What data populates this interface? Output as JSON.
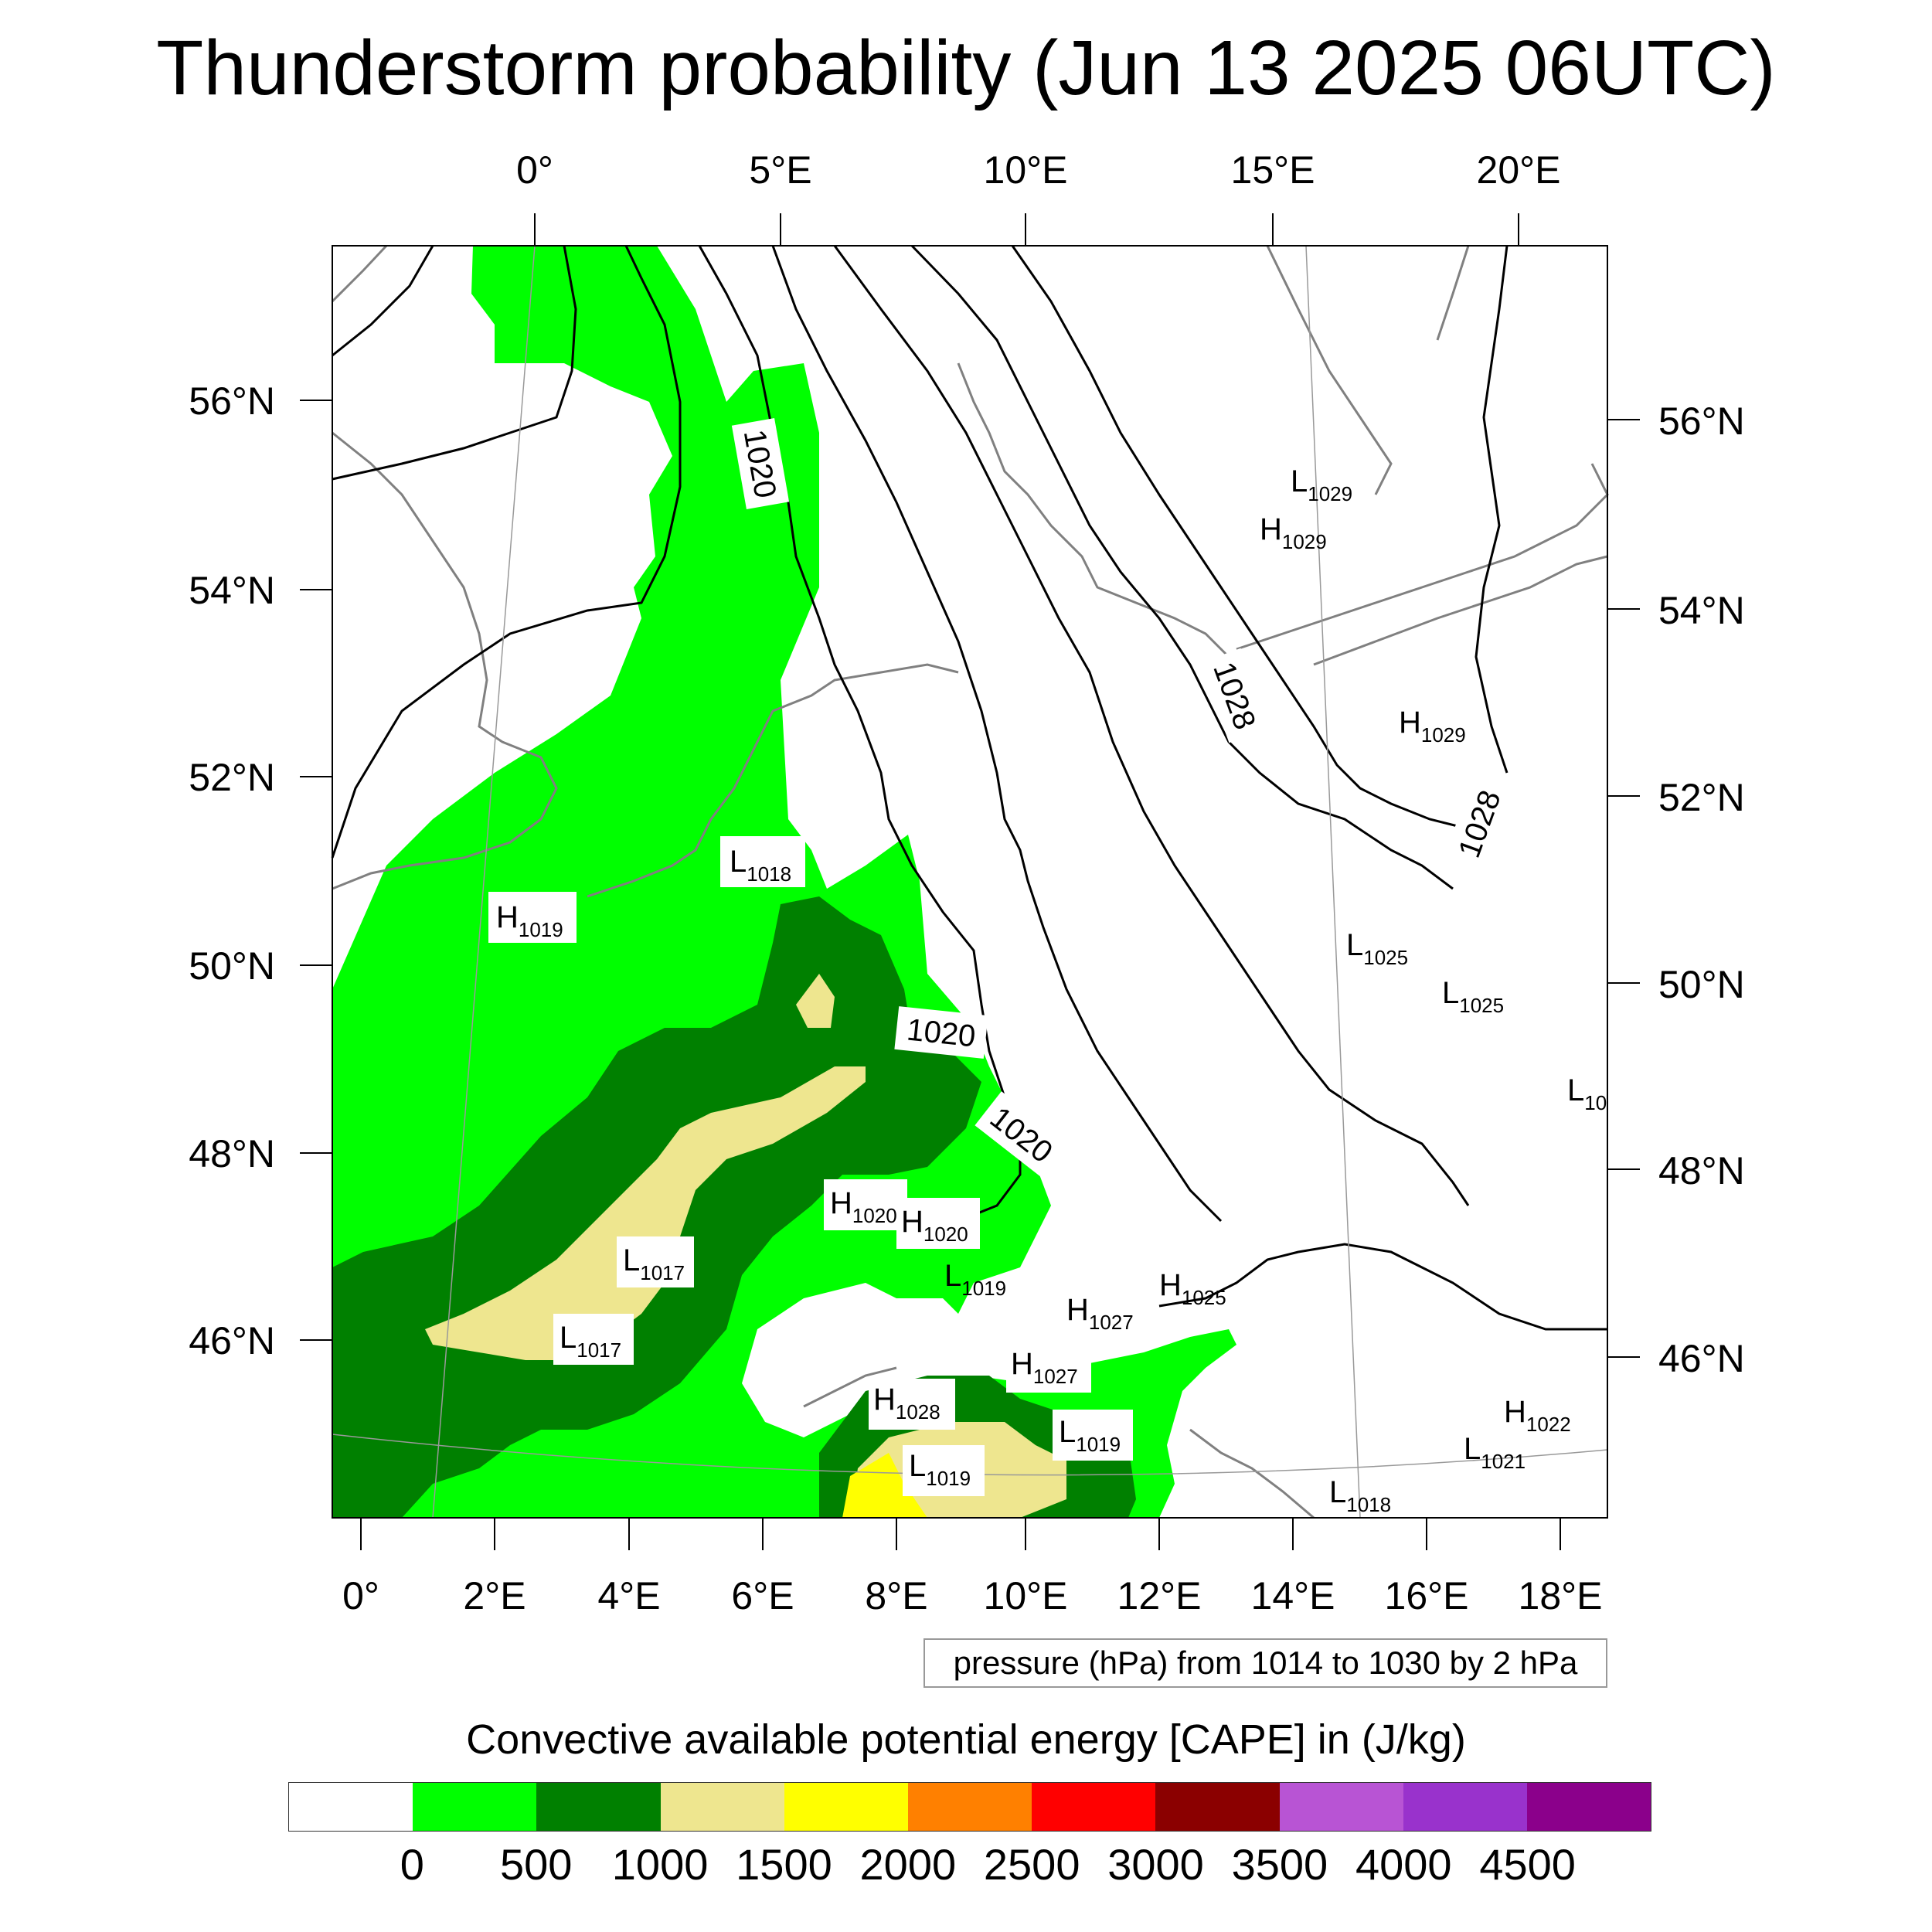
{
  "title": "Thunderstorm probability (Jun 13 2025 06UTC)",
  "top_axis_labels": [
    "0°",
    "5°E",
    "10°E",
    "15°E",
    "20°E"
  ],
  "bottom_axis_labels": [
    "0°",
    "2°E",
    "4°E",
    "6°E",
    "8°E",
    "10°E",
    "12°E",
    "14°E",
    "16°E",
    "18°E"
  ],
  "left_axis_labels": [
    "56°N",
    "54°N",
    "52°N",
    "50°N",
    "48°N",
    "46°N"
  ],
  "right_axis_labels": [
    "56°N",
    "54°N",
    "52°N",
    "50°N",
    "48°N",
    "46°N"
  ],
  "contour_labels": [
    "1020",
    "1020",
    "1020",
    "1028",
    "1028"
  ],
  "pressure_centers": [
    {
      "type": "L",
      "value": "1029"
    },
    {
      "type": "H",
      "value": "1029"
    },
    {
      "type": "H",
      "value": "1029"
    },
    {
      "type": "L",
      "value": "1018"
    },
    {
      "type": "H",
      "value": "1019"
    },
    {
      "type": "L",
      "value": "1025"
    },
    {
      "type": "L",
      "value": "1025"
    },
    {
      "type": "L",
      "value": "10"
    },
    {
      "type": "H",
      "value": "1020"
    },
    {
      "type": "H",
      "value": "1020"
    },
    {
      "type": "L",
      "value": "1019"
    },
    {
      "type": "H",
      "value": "1025"
    },
    {
      "type": "H",
      "value": "1027"
    },
    {
      "type": "L",
      "value": "1017"
    },
    {
      "type": "L",
      "value": "1017"
    },
    {
      "type": "H",
      "value": "1027"
    },
    {
      "type": "H",
      "value": "1028"
    },
    {
      "type": "L",
      "value": "1019"
    },
    {
      "type": "L",
      "value": "1019"
    },
    {
      "type": "H",
      "value": "1022"
    },
    {
      "type": "L",
      "value": "1021"
    },
    {
      "type": "L",
      "value": "1018"
    }
  ],
  "pressure_note": "pressure (hPa) from 1014 to 1030 by 2 hPa",
  "colorbar": {
    "title": "Convective available potential energy [CAPE] in (J/kg)",
    "colors": [
      "#ffffff",
      "#00ff00",
      "#008000",
      "#eee68f",
      "#ffff00",
      "#ff8000",
      "#ff0000",
      "#8b0000",
      "#b854d4",
      "#9932cc",
      "#8b008b"
    ],
    "labels": [
      "0",
      "500",
      "1000",
      "1500",
      "2000",
      "2500",
      "3000",
      "3500",
      "4000",
      "4500"
    ]
  }
}
